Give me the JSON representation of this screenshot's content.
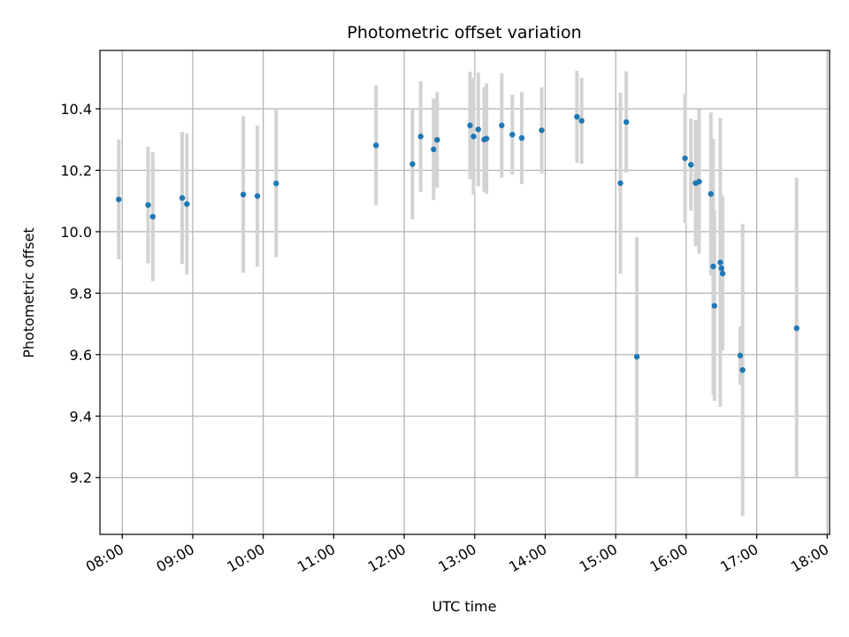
{
  "chart_data": {
    "type": "scatter",
    "title": "Photometric offset variation",
    "xlabel": "UTC time",
    "ylabel": "Photometric offset",
    "x_ticks": [
      "08:00",
      "09:00",
      "10:00",
      "11:00",
      "12:00",
      "13:00",
      "14:00",
      "15:00",
      "16:00",
      "17:00",
      "18:00"
    ],
    "y_ticks": [
      "9.2",
      "9.4",
      "9.6",
      "9.8",
      "10.0",
      "10.2",
      "10.4"
    ],
    "xlim": [
      "07:41",
      "18:02"
    ],
    "ylim": [
      9.015,
      10.59
    ],
    "grid": true,
    "colors": {
      "points": "#1f77b4",
      "errorbars": "#d3d3d3",
      "grid": "#b0b0b0"
    },
    "series": [
      {
        "points": [
          {
            "x": "07:57",
            "y": 10.105,
            "err": 0.195
          },
          {
            "x": "08:22",
            "y": 10.087,
            "err": 0.19
          },
          {
            "x": "08:26",
            "y": 10.049,
            "err": 0.21
          },
          {
            "x": "08:51",
            "y": 10.11,
            "err": 0.215
          },
          {
            "x": "08:55",
            "y": 10.09,
            "err": 0.23
          },
          {
            "x": "09:43",
            "y": 10.121,
            "err": 0.255
          },
          {
            "x": "09:55",
            "y": 10.116,
            "err": 0.23
          },
          {
            "x": "10:11",
            "y": 10.157,
            "err": 0.24
          },
          {
            "x": "11:36",
            "y": 10.281,
            "err": 0.195
          },
          {
            "x": "12:07",
            "y": 10.22,
            "err": 0.18
          },
          {
            "x": "12:14",
            "y": 10.31,
            "err": 0.18
          },
          {
            "x": "12:25",
            "y": 10.268,
            "err": 0.165
          },
          {
            "x": "12:28",
            "y": 10.299,
            "err": 0.155
          },
          {
            "x": "12:56",
            "y": 10.346,
            "err": 0.175
          },
          {
            "x": "12:59",
            "y": 10.31,
            "err": 0.19
          },
          {
            "x": "13:03",
            "y": 10.333,
            "err": 0.185
          },
          {
            "x": "13:08",
            "y": 10.3,
            "err": 0.17
          },
          {
            "x": "13:10",
            "y": 10.303,
            "err": 0.18
          },
          {
            "x": "13:23",
            "y": 10.346,
            "err": 0.17
          },
          {
            "x": "13:32",
            "y": 10.316,
            "err": 0.13
          },
          {
            "x": "13:40",
            "y": 10.305,
            "err": 0.15
          },
          {
            "x": "13:57",
            "y": 10.33,
            "err": 0.14
          },
          {
            "x": "14:27",
            "y": 10.374,
            "err": 0.15
          },
          {
            "x": "14:31",
            "y": 10.361,
            "err": 0.14
          },
          {
            "x": "15:04",
            "y": 10.158,
            "err": 0.295
          },
          {
            "x": "15:09",
            "y": 10.357,
            "err": 0.165
          },
          {
            "x": "15:18",
            "y": 9.593,
            "err": 0.39
          },
          {
            "x": "15:59",
            "y": 10.239,
            "err": 0.21
          },
          {
            "x": "16:04",
            "y": 10.218,
            "err": 0.15
          },
          {
            "x": "16:08",
            "y": 10.158,
            "err": 0.205
          },
          {
            "x": "16:11",
            "y": 10.163,
            "err": 0.235
          },
          {
            "x": "16:21",
            "y": 10.123,
            "err": 0.265
          },
          {
            "x": "16:23",
            "y": 9.887,
            "err": 0.415
          },
          {
            "x": "16:24",
            "y": 9.759,
            "err": 0.31
          },
          {
            "x": "16:29",
            "y": 9.9,
            "err": 0.47
          },
          {
            "x": "16:30",
            "y": 9.881,
            "err": 0.24
          },
          {
            "x": "16:31",
            "y": 9.864,
            "err": 0.25
          },
          {
            "x": "16:46",
            "y": 9.597,
            "err": 0.095
          },
          {
            "x": "16:48",
            "y": 9.55,
            "err": 0.475
          },
          {
            "x": "17:34",
            "y": 9.686,
            "err": 0.49
          }
        ]
      }
    ]
  }
}
